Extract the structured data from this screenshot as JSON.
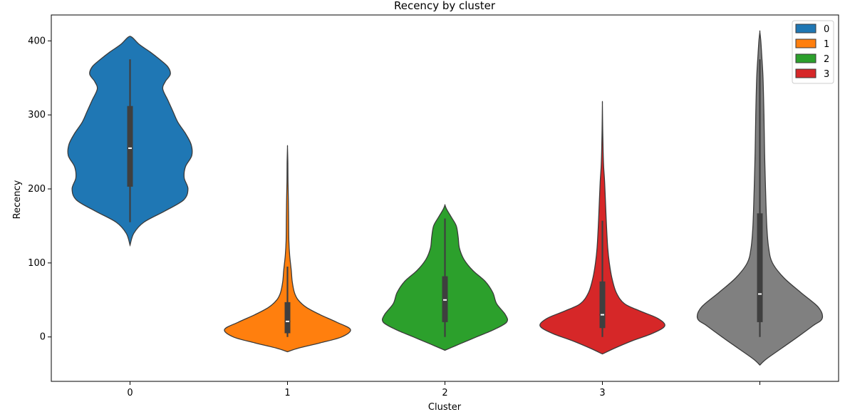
{
  "chart_data": {
    "type": "violin",
    "title": "Recency by cluster",
    "xlabel": "Cluster",
    "ylabel": "Recency",
    "ylim": [
      -60,
      435
    ],
    "yticks": [
      0,
      100,
      200,
      300,
      400
    ],
    "categories": [
      "0",
      "1",
      "2",
      "3",
      ""
    ],
    "grid": false,
    "legend": {
      "placement": "top-right",
      "entries": [
        {
          "label": "0",
          "color": "#1f77b4"
        },
        {
          "label": "1",
          "color": "#ff7f0e"
        },
        {
          "label": "2",
          "color": "#2ca02c"
        },
        {
          "label": "3",
          "color": "#d62728"
        }
      ]
    },
    "violins": [
      {
        "category": "0",
        "color": "#1f77b4",
        "min": 155,
        "q1": 203,
        "median": 255,
        "q3": 312,
        "max": 375,
        "density": [
          [
            124,
            0.0
          ],
          [
            140,
            0.06
          ],
          [
            155,
            0.22
          ],
          [
            170,
            0.55
          ],
          [
            185,
            0.85
          ],
          [
            200,
            0.92
          ],
          [
            215,
            0.86
          ],
          [
            230,
            0.88
          ],
          [
            245,
            0.98
          ],
          [
            260,
            0.97
          ],
          [
            275,
            0.88
          ],
          [
            290,
            0.76
          ],
          [
            305,
            0.68
          ],
          [
            320,
            0.6
          ],
          [
            335,
            0.52
          ],
          [
            345,
            0.56
          ],
          [
            355,
            0.64
          ],
          [
            365,
            0.6
          ],
          [
            375,
            0.47
          ],
          [
            385,
            0.32
          ],
          [
            395,
            0.15
          ],
          [
            405,
            0.03
          ]
        ]
      },
      {
        "category": "1",
        "color": "#ff7f0e",
        "min": 0,
        "q1": 5,
        "median": 21,
        "q3": 47,
        "max": 95,
        "density": [
          [
            -20,
            0.0
          ],
          [
            -15,
            0.18
          ],
          [
            -8,
            0.52
          ],
          [
            0,
            0.86
          ],
          [
            10,
            1.0
          ],
          [
            20,
            0.78
          ],
          [
            30,
            0.52
          ],
          [
            40,
            0.3
          ],
          [
            50,
            0.17
          ],
          [
            60,
            0.11
          ],
          [
            75,
            0.075
          ],
          [
            90,
            0.06
          ],
          [
            110,
            0.035
          ],
          [
            130,
            0.022
          ],
          [
            160,
            0.018
          ],
          [
            185,
            0.014
          ],
          [
            210,
            0.008
          ],
          [
            235,
            0.006
          ],
          [
            256,
            0.0
          ]
        ]
      },
      {
        "category": "2",
        "color": "#2ca02c",
        "min": 0,
        "q1": 20,
        "median": 50,
        "q3": 82,
        "max": 160,
        "density": [
          [
            -18,
            0.0
          ],
          [
            -10,
            0.22
          ],
          [
            0,
            0.5
          ],
          [
            10,
            0.78
          ],
          [
            20,
            0.98
          ],
          [
            30,
            0.96
          ],
          [
            45,
            0.82
          ],
          [
            60,
            0.76
          ],
          [
            75,
            0.64
          ],
          [
            90,
            0.44
          ],
          [
            105,
            0.3
          ],
          [
            120,
            0.23
          ],
          [
            135,
            0.21
          ],
          [
            150,
            0.18
          ],
          [
            162,
            0.1
          ],
          [
            172,
            0.03
          ],
          [
            178,
            0.0
          ]
        ]
      },
      {
        "category": "3",
        "color": "#d62728",
        "min": 0,
        "q1": 12,
        "median": 30,
        "q3": 75,
        "max": 157,
        "density": [
          [
            -23,
            0.0
          ],
          [
            -15,
            0.2
          ],
          [
            -5,
            0.48
          ],
          [
            5,
            0.8
          ],
          [
            15,
            0.99
          ],
          [
            25,
            0.88
          ],
          [
            35,
            0.6
          ],
          [
            45,
            0.35
          ],
          [
            60,
            0.22
          ],
          [
            80,
            0.15
          ],
          [
            100,
            0.11
          ],
          [
            120,
            0.085
          ],
          [
            150,
            0.065
          ],
          [
            180,
            0.05
          ],
          [
            210,
            0.035
          ],
          [
            230,
            0.02
          ],
          [
            250,
            0.012
          ],
          [
            280,
            0.005
          ],
          [
            314,
            0.0
          ]
        ]
      },
      {
        "category": "",
        "color": "#808080",
        "min": 0,
        "q1": 20,
        "median": 58,
        "q3": 167,
        "max": 375,
        "density": [
          [
            -38,
            0.0
          ],
          [
            -30,
            0.1
          ],
          [
            -15,
            0.35
          ],
          [
            0,
            0.6
          ],
          [
            15,
            0.84
          ],
          [
            25,
            0.99
          ],
          [
            40,
            0.93
          ],
          [
            60,
            0.65
          ],
          [
            80,
            0.38
          ],
          [
            100,
            0.2
          ],
          [
            120,
            0.14
          ],
          [
            150,
            0.11
          ],
          [
            200,
            0.09
          ],
          [
            250,
            0.075
          ],
          [
            300,
            0.065
          ],
          [
            350,
            0.05
          ],
          [
            380,
            0.03
          ],
          [
            400,
            0.015
          ],
          [
            412,
            0.0
          ]
        ]
      }
    ]
  }
}
